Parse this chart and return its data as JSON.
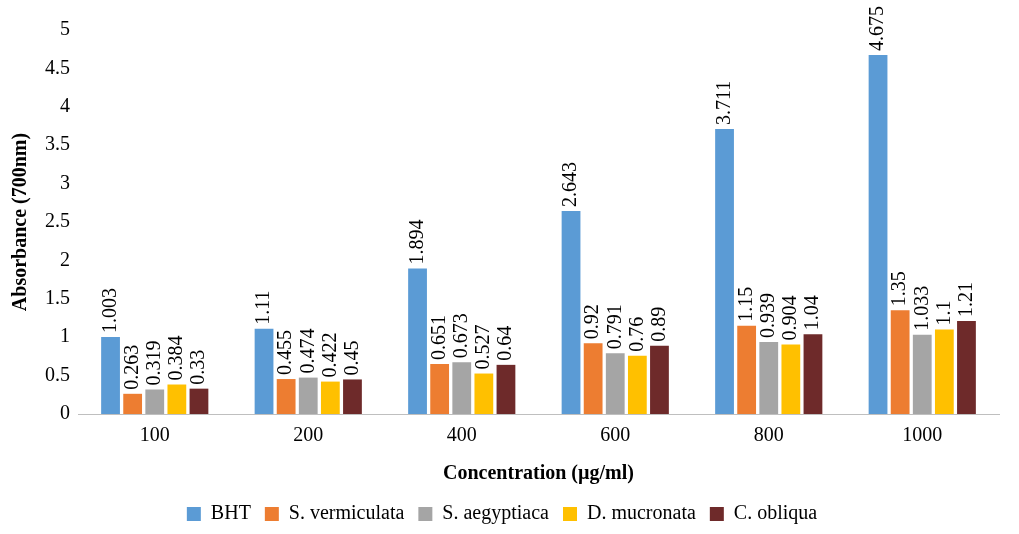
{
  "chart_data": {
    "type": "bar",
    "xlabel": "Concentration (µg/ml)",
    "ylabel": "Absorbance (700nm)",
    "categories": [
      "100",
      "200",
      "400",
      "600",
      "800",
      "1000"
    ],
    "series": [
      {
        "name": "BHT",
        "color": "#5b9bd5",
        "values": [
          1.003,
          1.11,
          1.894,
          2.643,
          3.711,
          4.675
        ]
      },
      {
        "name": "S. vermiculata",
        "color": "#ed7d31",
        "values": [
          0.263,
          0.455,
          0.651,
          0.92,
          1.15,
          1.35
        ]
      },
      {
        "name": "S. aegyptiaca",
        "color": "#a5a5a5",
        "values": [
          0.319,
          0.474,
          0.673,
          0.791,
          0.939,
          1.033
        ]
      },
      {
        "name": "D. mucronata",
        "color": "#ffc000",
        "values": [
          0.384,
          0.422,
          0.527,
          0.76,
          0.904,
          1.1
        ]
      },
      {
        "name": "C. obliqua",
        "color": "#6e2a2a",
        "values": [
          0.33,
          0.45,
          0.64,
          0.89,
          1.04,
          1.21
        ]
      }
    ],
    "ylim": [
      0,
      5
    ],
    "yticks": [
      0,
      0.5,
      1,
      1.5,
      2,
      2.5,
      3,
      3.5,
      4,
      4.5,
      5
    ],
    "grid": false,
    "legend": "bottom",
    "data_labels": true
  }
}
